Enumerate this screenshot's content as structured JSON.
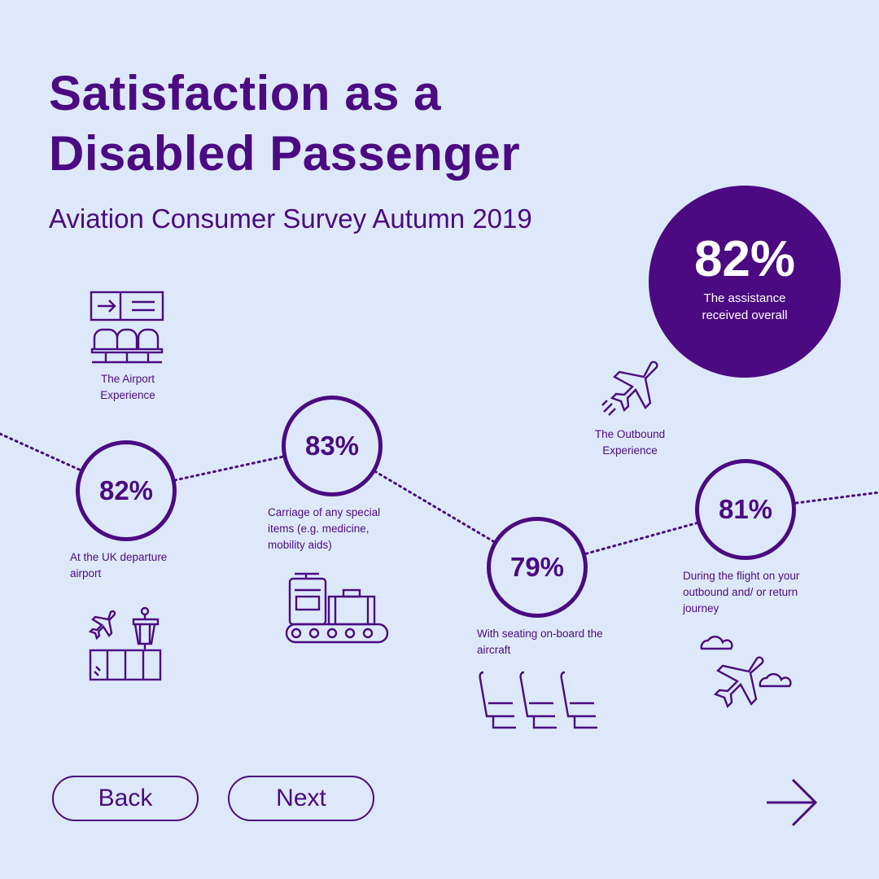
{
  "title": "Satisfaction as a Disabled Passenger",
  "subtitle": "Aviation Consumer Survey Autumn 2019",
  "overall": {
    "value": "82%",
    "label": "The assistance received overall"
  },
  "sections": {
    "airport": "The Airport Experience",
    "outbound": "The Outbound Experience"
  },
  "stats": [
    {
      "value": "82%",
      "label": "At the UK departure airport"
    },
    {
      "value": "83%",
      "label": "Carriage of any special items (e.g. medicine, mobility aids)"
    },
    {
      "value": "79%",
      "label": "With seating on-board the aircraft"
    },
    {
      "value": "81%",
      "label": "During the flight on your outbound and/ or return journey"
    }
  ],
  "nav": {
    "back": "Back",
    "next": "Next"
  },
  "colors": {
    "accent": "#4b0a82",
    "background": "#dde9fa"
  }
}
